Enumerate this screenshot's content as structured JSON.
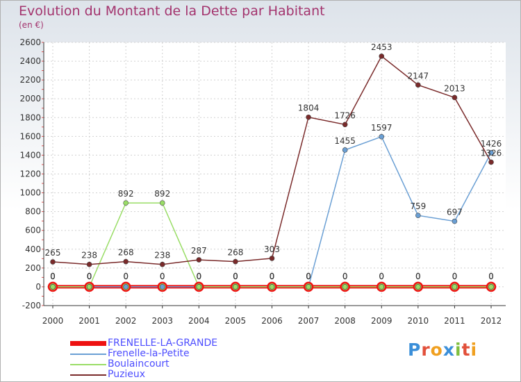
{
  "header": {
    "title": "Evolution du Montant de la Dette par Habitant",
    "unit": "(en €)"
  },
  "logo": {
    "letters": [
      "P",
      "r",
      "o",
      "x",
      "i",
      "t",
      "i"
    ],
    "colors": [
      "#3b8fd9",
      "#e2503a",
      "#f0a020",
      "#3b8fd9",
      "#7fbf3f",
      "#e2503a",
      "#f0a020"
    ]
  },
  "chart_data": {
    "type": "line",
    "x": [
      "2000",
      "2001",
      "2002",
      "2003",
      "2004",
      "2005",
      "2006",
      "2007",
      "2008",
      "2009",
      "2010",
      "2011",
      "2012"
    ],
    "ylim": [
      -200,
      2600
    ],
    "yticks": [
      "-200",
      "0",
      "200",
      "400",
      "600",
      "800",
      "1000",
      "1200",
      "1400",
      "1600",
      "1800",
      "2000",
      "2200",
      "2400",
      "2600"
    ],
    "grid": true,
    "legend_position": "bottom-left",
    "series": [
      {
        "name": "FRENELLE-LA-GRANDE",
        "color": "#ee1111",
        "values": [
          0,
          0,
          0,
          0,
          0,
          0,
          0,
          0,
          0,
          0,
          0,
          0,
          0
        ],
        "labels": [
          "0",
          "0",
          "0",
          "0",
          "0",
          "0",
          "0",
          "0",
          "0",
          "0",
          "0",
          "0",
          "0"
        ]
      },
      {
        "name": "Frenelle-la-Petite",
        "color": "#6a9fd4",
        "values": [
          0,
          0,
          0,
          0,
          0,
          0,
          0,
          0,
          1455,
          1597,
          759,
          697,
          1426
        ],
        "labels": [
          "0",
          "0",
          "0",
          "0",
          "0",
          "0",
          "0",
          "0",
          "1455",
          "1597",
          "759",
          "697",
          "1426"
        ]
      },
      {
        "name": "Boulaincourt",
        "color": "#99dd66",
        "values": [
          0,
          0,
          892,
          892,
          0,
          0,
          0,
          0,
          0,
          0,
          0,
          0,
          0
        ],
        "labels": [
          "0",
          "0",
          "892",
          "892",
          "0",
          "0",
          "0",
          "0",
          "0",
          "0",
          "0",
          "0",
          "0"
        ]
      },
      {
        "name": "Puzieux",
        "color": "#7a2a2a",
        "values": [
          265,
          238,
          268,
          238,
          287,
          268,
          303,
          1804,
          1726,
          2453,
          2147,
          2013,
          1326
        ],
        "labels": [
          "265",
          "238",
          "268",
          "238",
          "287",
          "268",
          "303",
          "1804",
          "1726",
          "2453",
          "2147",
          "2013",
          "1326"
        ]
      }
    ]
  }
}
